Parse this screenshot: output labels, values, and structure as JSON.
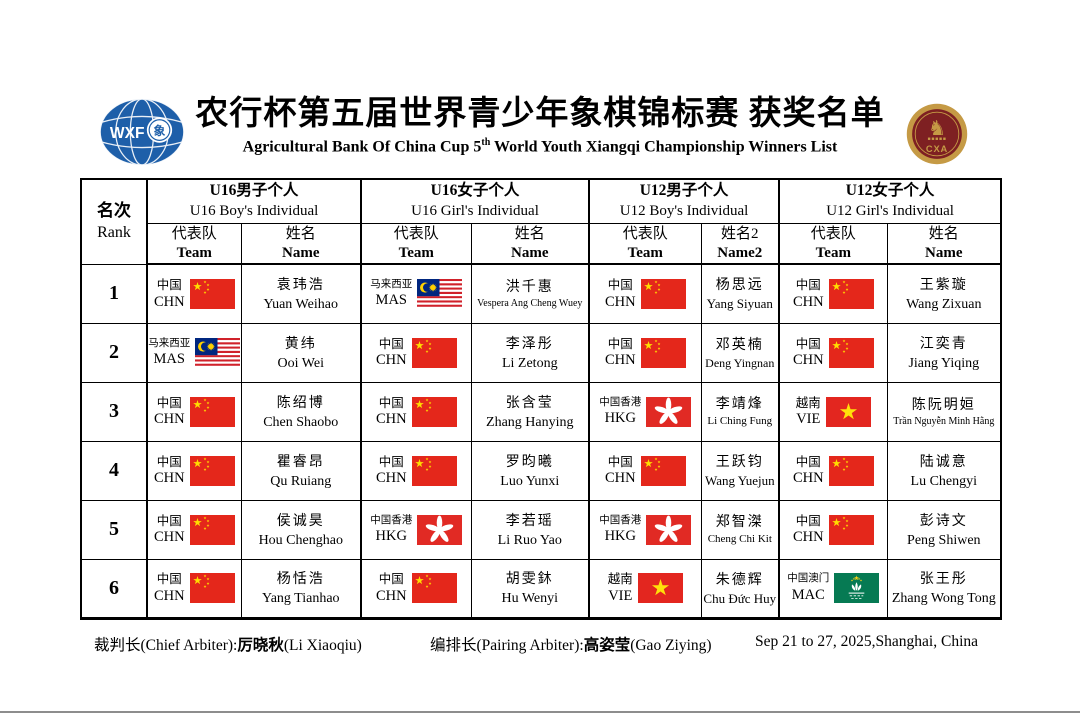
{
  "header": {
    "title_cn": "农行杯第五届世界青少年象棋锦标赛 获奖名单",
    "subtitle_pre": "Agricultural Bank Of China Cup 5",
    "subtitle_sup": "th",
    "subtitle_post": " World Youth Xiangqi Championship Winners  List",
    "logos": {
      "wxf_text": "WXF",
      "wxf_piece": "象",
      "cxa_text": "CXA",
      "cxa_knight": "♞"
    }
  },
  "colors": {
    "logo_blue": "#1E5FA9",
    "logo_gold": "#C59A45",
    "logo_maroon": "#7E2022",
    "border": "#000000"
  },
  "flags": {
    "CHN": {
      "field": "#E4271B",
      "star": "#FFDE00"
    },
    "MAS": {
      "red": "#D0212A",
      "white": "#FFFFFF",
      "canton": "#00267F",
      "yellow": "#FFD100"
    },
    "HKG": {
      "field": "#E12A24",
      "flower": "#FFFFFF"
    },
    "VIE": {
      "field": "#E3261F",
      "star": "#FFE00A"
    },
    "MAC": {
      "field": "#067A53",
      "lotus": "#FFFFFF",
      "stars": "#FBD116"
    }
  },
  "table": {
    "rank_header": {
      "cn": "名次",
      "en": "Rank"
    },
    "groups": [
      {
        "title_cn": "U16男子个人",
        "title_en": "U16 Boy's Individual",
        "team_cn": "代表队",
        "team_en": "Team",
        "name_cn": "姓名",
        "name_en": "Name"
      },
      {
        "title_cn": "U16女子个人",
        "title_en": "U16 Girl's Individual",
        "team_cn": "代表队",
        "team_en": "Team",
        "name_cn": "姓名",
        "name_en": "Name"
      },
      {
        "title_cn": "U12男子个人",
        "title_en": "U12 Boy's Individual",
        "team_cn": "代表队",
        "team_en": "Team",
        "name_cn": "姓名2",
        "name_en": "Name2"
      },
      {
        "title_cn": "U12女子个人",
        "title_en": "U12 Girl's Individual",
        "team_cn": "代表队",
        "team_en": "Team",
        "name_cn": "姓名",
        "name_en": "Name"
      }
    ],
    "rows": [
      {
        "rank": "1",
        "cells": [
          {
            "team_cn": "中国",
            "code": "CHN",
            "flag": "CHN",
            "name_cn": "袁玮浩",
            "name_en": "Yuan Weihao"
          },
          {
            "team_cn": "马来西亚",
            "code": "MAS",
            "flag": "MAS",
            "name_cn": "洪千惠",
            "name_en": "Vespera Ang Cheng Wuey"
          },
          {
            "team_cn": "中国",
            "code": "CHN",
            "flag": "CHN",
            "name_cn": "杨思远",
            "name_en": "Yang Siyuan"
          },
          {
            "team_cn": "中国",
            "code": "CHN",
            "flag": "CHN",
            "name_cn": "王紫璇",
            "name_en": "Wang Zixuan"
          }
        ]
      },
      {
        "rank": "2",
        "cells": [
          {
            "team_cn": "马来西亚",
            "code": "MAS",
            "flag": "MAS",
            "name_cn": "黄纬",
            "name_en": "Ooi Wei"
          },
          {
            "team_cn": "中国",
            "code": "CHN",
            "flag": "CHN",
            "name_cn": "李泽彤",
            "name_en": "Li Zetong"
          },
          {
            "team_cn": "中国",
            "code": "CHN",
            "flag": "CHN",
            "name_cn": "邓英楠",
            "name_en": "Deng Yingnan"
          },
          {
            "team_cn": "中国",
            "code": "CHN",
            "flag": "CHN",
            "name_cn": "江奕青",
            "name_en": "Jiang Yiqing"
          }
        ]
      },
      {
        "rank": "3",
        "cells": [
          {
            "team_cn": "中国",
            "code": "CHN",
            "flag": "CHN",
            "name_cn": "陈绍博",
            "name_en": "Chen Shaobo"
          },
          {
            "team_cn": "中国",
            "code": "CHN",
            "flag": "CHN",
            "name_cn": "张含莹",
            "name_en": "Zhang Hanying"
          },
          {
            "team_cn": "中国香港",
            "code": "HKG",
            "flag": "HKG",
            "name_cn": "李靖烽",
            "name_en": "Li Ching Fung"
          },
          {
            "team_cn": "越南",
            "code": "VIE",
            "flag": "VIE",
            "name_cn": "陈阮明姮",
            "name_en": "Trần Nguyễn Minh Hằng"
          }
        ]
      },
      {
        "rank": "4",
        "cells": [
          {
            "team_cn": "中国",
            "code": "CHN",
            "flag": "CHN",
            "name_cn": "瞿睿昂",
            "name_en": "Qu Ruiang"
          },
          {
            "team_cn": "中国",
            "code": "CHN",
            "flag": "CHN",
            "name_cn": "罗昀曦",
            "name_en": "Luo Yunxi"
          },
          {
            "team_cn": "中国",
            "code": "CHN",
            "flag": "CHN",
            "name_cn": "王跃钧",
            "name_en": "Wang Yuejun"
          },
          {
            "team_cn": "中国",
            "code": "CHN",
            "flag": "CHN",
            "name_cn": "陆诚意",
            "name_en": "Lu Chengyi"
          }
        ]
      },
      {
        "rank": "5",
        "cells": [
          {
            "team_cn": "中国",
            "code": "CHN",
            "flag": "CHN",
            "name_cn": "侯诚昊",
            "name_en": "Hou Chenghao"
          },
          {
            "team_cn": "中国香港",
            "code": "HKG",
            "flag": "HKG",
            "name_cn": "李若瑶",
            "name_en": "Li Ruo Yao"
          },
          {
            "team_cn": "中国香港",
            "code": "HKG",
            "flag": "HKG",
            "name_cn": "郑智滐",
            "name_en": "Cheng Chi Kit"
          },
          {
            "team_cn": "中国",
            "code": "CHN",
            "flag": "CHN",
            "name_cn": "彭诗文",
            "name_en": "Peng Shiwen"
          }
        ]
      },
      {
        "rank": "6",
        "cells": [
          {
            "team_cn": "中国",
            "code": "CHN",
            "flag": "CHN",
            "name_cn": "杨恬浩",
            "name_en": "Yang Tianhao"
          },
          {
            "team_cn": "中国",
            "code": "CHN",
            "flag": "CHN",
            "name_cn": "胡雯鈢",
            "name_en": "Hu Wenyi"
          },
          {
            "team_cn": "越南",
            "code": "VIE",
            "flag": "VIE",
            "name_cn": "朱德辉",
            "name_en": "Chu Đức Huy"
          },
          {
            "team_cn": "中国澳门",
            "code": "MAC",
            "flag": "MAC",
            "name_cn": "张王彤",
            "name_en": "Zhang Wong Tong"
          }
        ]
      }
    ]
  },
  "footer": {
    "chief_label": "裁判长(Chief Arbiter):",
    "chief_name_cn": "厉晓秋",
    "chief_name_en": "(Li Xiaoqiu)",
    "pairing_label": "编排长(Pairing Arbiter):",
    "pairing_name_cn": "高姿莹",
    "pairing_name_en": "(Gao Ziying)",
    "date_location": "Sep 21 to 27, 2025,Shanghai, China"
  }
}
